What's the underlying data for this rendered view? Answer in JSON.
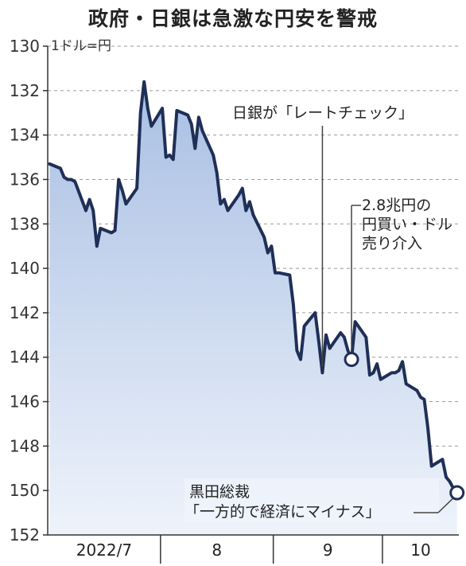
{
  "title": "政府・日銀は急激な円安を警戒",
  "chart_data": {
    "type": "area",
    "unit_label": "1ドル=円",
    "y_axis": {
      "ticks": [
        130,
        132,
        134,
        136,
        138,
        140,
        142,
        144,
        146,
        148,
        150,
        152
      ],
      "min": 130,
      "max": 152,
      "inverted": true,
      "grid": "dashed"
    },
    "x_axis": {
      "labels": [
        "2022/7",
        "8",
        "9",
        "10"
      ],
      "month_days": [
        31,
        31,
        30,
        21
      ]
    },
    "series": [
      {
        "x": [
          "2022-07-01",
          "2022-07-04",
          "2022-07-05",
          "2022-07-06",
          "2022-07-07",
          "2022-07-08",
          "2022-07-11",
          "2022-07-12",
          "2022-07-13",
          "2022-07-14",
          "2022-07-15",
          "2022-07-18",
          "2022-07-19",
          "2022-07-20",
          "2022-07-21",
          "2022-07-22",
          "2022-07-25",
          "2022-07-26",
          "2022-07-27",
          "2022-07-28",
          "2022-07-29",
          "2022-08-01",
          "2022-08-02",
          "2022-08-03",
          "2022-08-04",
          "2022-08-05",
          "2022-08-08",
          "2022-08-09",
          "2022-08-10",
          "2022-08-11",
          "2022-08-12",
          "2022-08-15",
          "2022-08-16",
          "2022-08-17",
          "2022-08-18",
          "2022-08-19",
          "2022-08-22",
          "2022-08-23",
          "2022-08-24",
          "2022-08-25",
          "2022-08-26",
          "2022-08-29",
          "2022-08-30",
          "2022-08-31",
          "2022-09-01",
          "2022-09-02",
          "2022-09-05",
          "2022-09-06",
          "2022-09-07",
          "2022-09-08",
          "2022-09-09",
          "2022-09-12",
          "2022-09-13",
          "2022-09-14",
          "2022-09-15",
          "2022-09-16",
          "2022-09-19",
          "2022-09-20",
          "2022-09-21",
          "2022-09-22",
          "2022-09-23",
          "2022-09-26",
          "2022-09-27",
          "2022-09-28",
          "2022-09-29",
          "2022-09-30",
          "2022-10-03",
          "2022-10-04",
          "2022-10-05",
          "2022-10-06",
          "2022-10-07",
          "2022-10-10",
          "2022-10-11",
          "2022-10-12",
          "2022-10-13",
          "2022-10-14",
          "2022-10-17",
          "2022-10-18",
          "2022-10-19",
          "2022-10-20",
          "2022-10-21"
        ],
        "values": [
          135.3,
          135.5,
          135.9,
          136.0,
          136.0,
          136.1,
          137.4,
          136.9,
          137.4,
          139.0,
          138.2,
          138.4,
          138.3,
          136.0,
          136.5,
          137.1,
          136.4,
          133.0,
          131.6,
          132.8,
          133.6,
          132.8,
          135.0,
          134.9,
          135.1,
          132.9,
          133.1,
          133.5,
          134.6,
          133.2,
          133.8,
          134.9,
          135.7,
          137.1,
          136.9,
          137.4,
          136.7,
          136.4,
          137.4,
          137.0,
          137.6,
          138.6,
          139.3,
          139.0,
          140.2,
          140.2,
          140.3,
          141.6,
          143.7,
          144.1,
          142.6,
          142.0,
          143.3,
          144.7,
          143.0,
          143.6,
          142.9,
          143.1,
          143.7,
          144.1,
          142.4,
          143.1,
          144.8,
          144.7,
          144.3,
          145.0,
          144.7,
          144.7,
          144.6,
          144.2,
          145.2,
          145.5,
          145.8,
          145.9,
          147.2,
          148.9,
          148.6,
          149.4,
          149.6,
          149.9,
          150.1
        ]
      }
    ],
    "annotations": [
      {
        "text": [
          "日銀が「レートチェック」"
        ],
        "date": "2022-09-14",
        "marker": false
      },
      {
        "text": [
          "2.8兆円の",
          "円買い・ドル",
          "売り介入"
        ],
        "date": "2022-09-22",
        "marker": true
      },
      {
        "text": [
          "黒田総裁",
          "「一方的で経済にマイナス」"
        ],
        "date": "2022-10-21",
        "marker": true
      }
    ],
    "colors": {
      "line": "#1f2f57",
      "area_top": "#a9bfe3",
      "area_bottom": "#eef3fb",
      "axis": "#333333",
      "grid": "#9a9a9a"
    }
  }
}
